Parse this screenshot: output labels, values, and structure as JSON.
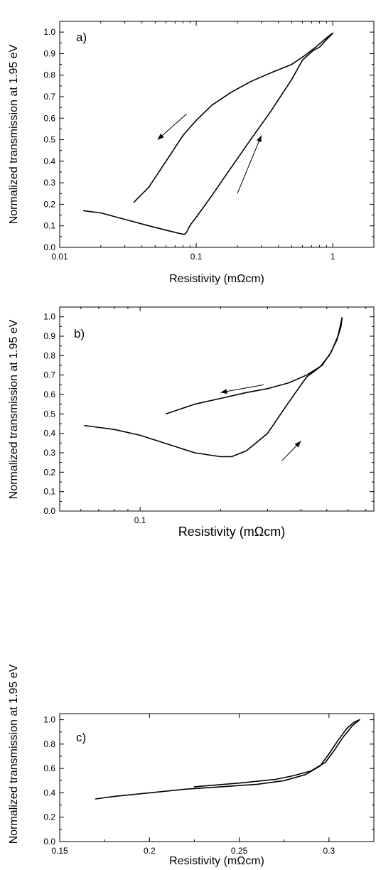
{
  "chart_data": [
    {
      "type": "line",
      "panel_label": "a)",
      "xlabel": "Resistivity (mΩcm)",
      "ylabel": "Normalized transmission at 1.95 eV",
      "xscale": "log",
      "xlim": [
        0.01,
        2.0
      ],
      "ylim": [
        0.0,
        1.05
      ],
      "xticks": [
        0.01,
        0.1,
        1
      ],
      "xtick_labels": [
        "0.01",
        "0.1",
        "1"
      ],
      "yticks": [
        0.0,
        0.1,
        0.2,
        0.3,
        0.4,
        0.5,
        0.6,
        0.7,
        0.8,
        0.9,
        1.0
      ],
      "ytick_labels": [
        "0.0",
        "0.1",
        "0.2",
        "0.3",
        "0.4",
        "0.5",
        "0.6",
        "0.7",
        "0.8",
        "0.9",
        "1.0"
      ],
      "grid": false,
      "series": [
        {
          "x": [
            0.035,
            0.045,
            0.06,
            0.08,
            0.1,
            0.13,
            0.18,
            0.25,
            0.35,
            0.5,
            0.62,
            0.75,
            0.85,
            0.95,
            1.0
          ],
          "y": [
            0.21,
            0.28,
            0.4,
            0.52,
            0.59,
            0.66,
            0.72,
            0.77,
            0.81,
            0.85,
            0.89,
            0.93,
            0.96,
            0.985,
            0.995
          ]
        },
        {
          "x": [
            0.015,
            0.02,
            0.03,
            0.045,
            0.06,
            0.075,
            0.082,
            0.085,
            0.088,
            0.092,
            0.1,
            0.13,
            0.18,
            0.25,
            0.35,
            0.5,
            0.6,
            0.72,
            0.8,
            0.9,
            1.0
          ],
          "y": [
            0.17,
            0.16,
            0.13,
            0.1,
            0.08,
            0.065,
            0.06,
            0.07,
            0.09,
            0.11,
            0.14,
            0.24,
            0.37,
            0.5,
            0.63,
            0.78,
            0.87,
            0.915,
            0.93,
            0.965,
            0.995
          ]
        }
      ],
      "arrows": [
        {
          "from": [
            0.085,
            0.62
          ],
          "to": [
            0.052,
            0.5
          ]
        },
        {
          "from": [
            0.2,
            0.25
          ],
          "to": [
            0.3,
            0.52
          ]
        }
      ]
    },
    {
      "type": "line",
      "panel_label": "b)",
      "xlabel": "Resistivity (mΩcm)",
      "ylabel": "Normalized transmission at 1.95 eV",
      "xscale": "log",
      "xlim": [
        0.05,
        0.75
      ],
      "ylim": [
        0.0,
        1.05
      ],
      "xticks": [
        0.1
      ],
      "xtick_labels": [
        "0.1"
      ],
      "yticks": [
        0.0,
        0.1,
        0.2,
        0.3,
        0.4,
        0.5,
        0.6,
        0.7,
        0.8,
        0.9,
        1.0
      ],
      "ytick_labels": [
        "0.0",
        "0.1",
        "0.2",
        "0.3",
        "0.4",
        "0.5",
        "0.6",
        "0.7",
        "0.8",
        "0.9",
        "1.0"
      ],
      "grid": false,
      "series": [
        {
          "x": [
            0.125,
            0.16,
            0.2,
            0.25,
            0.3,
            0.36,
            0.42,
            0.48,
            0.52,
            0.55,
            0.57
          ],
          "y": [
            0.5,
            0.55,
            0.58,
            0.61,
            0.63,
            0.66,
            0.7,
            0.75,
            0.82,
            0.9,
            0.995
          ]
        },
        {
          "x": [
            0.062,
            0.08,
            0.1,
            0.13,
            0.16,
            0.2,
            0.22,
            0.25,
            0.3,
            0.36,
            0.42,
            0.47,
            0.51,
            0.545,
            0.565,
            0.57
          ],
          "y": [
            0.44,
            0.42,
            0.39,
            0.34,
            0.3,
            0.28,
            0.28,
            0.31,
            0.4,
            0.56,
            0.69,
            0.74,
            0.8,
            0.88,
            0.95,
            0.995
          ]
        }
      ],
      "arrows": [
        {
          "from": [
            0.29,
            0.65
          ],
          "to": [
            0.2,
            0.61
          ]
        },
        {
          "from": [
            0.34,
            0.26
          ],
          "to": [
            0.4,
            0.36
          ]
        }
      ]
    },
    {
      "type": "line",
      "panel_label": "c)",
      "xlabel": "Resistivity (mΩcm)",
      "ylabel": "Normalized transmission at 1.95 eV",
      "xscale": "linear",
      "xlim": [
        0.15,
        0.325
      ],
      "ylim": [
        0.0,
        1.05
      ],
      "xticks": [
        0.15,
        0.2,
        0.25,
        0.3
      ],
      "xtick_labels": [
        "0.15",
        "0.2",
        "0.25",
        "0.3"
      ],
      "yticks": [
        0.0,
        0.2,
        0.4,
        0.6,
        0.8,
        1.0
      ],
      "ytick_labels": [
        "0.0",
        "0.2",
        "0.4",
        "0.6",
        "0.8",
        "1.0"
      ],
      "grid": false,
      "series": [
        {
          "x": [
            0.225,
            0.25,
            0.27,
            0.28,
            0.29,
            0.298,
            0.303,
            0.308,
            0.313,
            0.317
          ],
          "y": [
            0.45,
            0.48,
            0.51,
            0.54,
            0.58,
            0.65,
            0.75,
            0.86,
            0.95,
            1.0
          ]
        },
        {
          "x": [
            0.17,
            0.18,
            0.2,
            0.22,
            0.24,
            0.26,
            0.275,
            0.287,
            0.295,
            0.3,
            0.305,
            0.31,
            0.314,
            0.317
          ],
          "y": [
            0.35,
            0.37,
            0.4,
            0.43,
            0.45,
            0.47,
            0.5,
            0.55,
            0.62,
            0.72,
            0.83,
            0.93,
            0.98,
            1.0
          ]
        }
      ],
      "arrows": []
    }
  ]
}
